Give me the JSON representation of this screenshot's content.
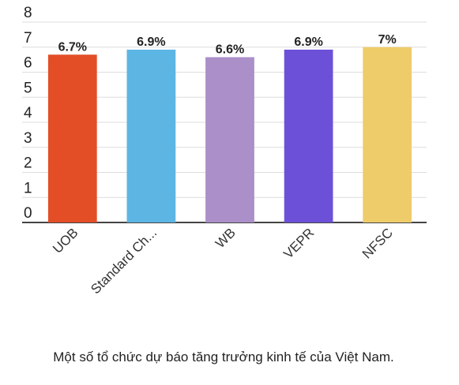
{
  "chart_data": {
    "type": "bar",
    "caption": "Một số tổ chức dự báo tăng trưởng kinh tế của Việt Nam.",
    "categories": [
      "UOB",
      "Standard Ch...",
      "WB",
      "VEPR",
      "NFSC"
    ],
    "values": [
      6.7,
      6.9,
      6.6,
      6.9,
      7
    ],
    "value_labels": [
      "6.7%",
      "6.9%",
      "6.6%",
      "6.9%",
      "7%"
    ],
    "colors": [
      "#e34e27",
      "#5db5e3",
      "#ab8fc8",
      "#6c51d8",
      "#efcc6a"
    ],
    "ylim": [
      0,
      8
    ],
    "yticks": [
      0,
      1,
      2,
      3,
      4,
      5,
      6,
      7,
      8
    ],
    "grid": true
  }
}
